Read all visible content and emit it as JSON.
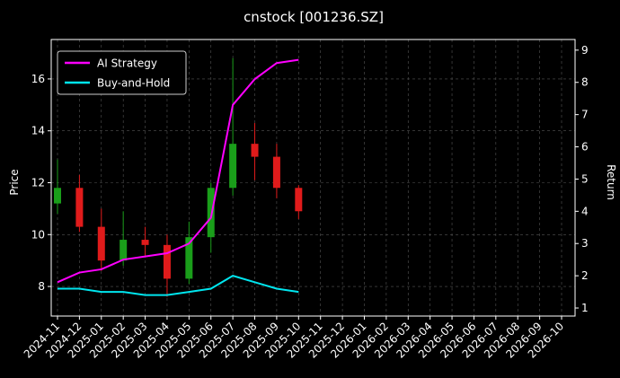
{
  "chart_data": {
    "type": "candlestick",
    "title": "cnstock [001236.SZ]",
    "ylabel": "Price",
    "y2label": "Return",
    "x": [
      "2024-11",
      "2024-12",
      "2025-01",
      "2025-02",
      "2025-03",
      "2025-04",
      "2025-05",
      "2025-06",
      "2025-07",
      "2025-08",
      "2025-09",
      "2025-10"
    ],
    "open": [
      11.2,
      11.8,
      10.3,
      9.0,
      9.8,
      9.6,
      8.3,
      9.9,
      11.8,
      13.5,
      13.0,
      11.8
    ],
    "high": [
      12.9,
      12.3,
      11.0,
      10.9,
      10.3,
      10.0,
      10.5,
      12.0,
      16.8,
      14.3,
      13.5,
      11.9
    ],
    "low": [
      10.8,
      10.1,
      8.6,
      8.8,
      9.2,
      7.6,
      8.1,
      9.3,
      11.5,
      12.1,
      11.4,
      10.6
    ],
    "close": [
      11.8,
      10.3,
      9.0,
      9.8,
      9.6,
      8.3,
      9.9,
      11.8,
      13.5,
      13.0,
      11.8,
      10.9
    ],
    "up_color": "#1a9e1a",
    "down_color": "#e01b1b",
    "series": [
      {
        "name": "AI Strategy",
        "color": "#ff00ff",
        "axis": "y2",
        "values": [
          1.8,
          2.1,
          2.2,
          2.5,
          2.6,
          2.7,
          3.0,
          3.8,
          7.3,
          8.1,
          8.6,
          8.7
        ]
      },
      {
        "name": "Buy-and-Hold",
        "color": "#00e5ee",
        "axis": "y2",
        "values": [
          1.6,
          1.6,
          1.5,
          1.5,
          1.4,
          1.4,
          1.5,
          1.6,
          2.0,
          1.8,
          1.6,
          1.5
        ]
      }
    ],
    "xlim": [
      "2024-11",
      "2026-10"
    ],
    "xticks": [
      "2024-11",
      "2024-12",
      "2025-01",
      "2025-02",
      "2025-03",
      "2025-04",
      "2025-05",
      "2025-06",
      "2025-07",
      "2025-08",
      "2025-09",
      "2025-10",
      "2025-11",
      "2025-12",
      "2026-01",
      "2026-02",
      "2026-03",
      "2026-04",
      "2026-05",
      "2026-06",
      "2026-07",
      "2026-08",
      "2026-09",
      "2026-10"
    ],
    "ylim": [
      6.86,
      17.52
    ],
    "yticks": [
      8,
      10,
      12,
      14,
      16
    ],
    "y2lim": [
      0.75,
      9.33
    ],
    "y2ticks": [
      1,
      2,
      3,
      4,
      5,
      6,
      7,
      8,
      9
    ],
    "grid": true,
    "legend": "upper left"
  }
}
